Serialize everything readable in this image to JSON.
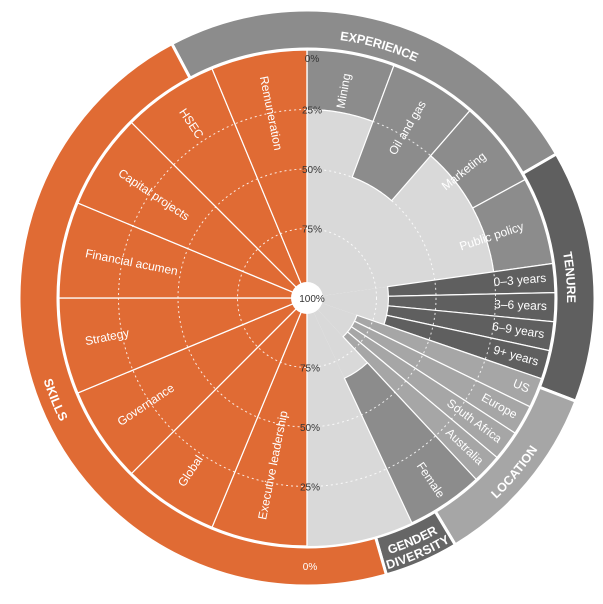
{
  "chart_data": {
    "type": "radial_bar",
    "scale_labels": {
      "top": [
        "0%",
        "25%",
        "50%",
        "75%"
      ],
      "center": "100%",
      "bottom": [
        "75%",
        "50%",
        "25%",
        "0%"
      ]
    },
    "groups": [
      {
        "name": "EXPERIENCE",
        "color": "#8c8c8c",
        "items": [
          {
            "label": "Mining",
            "value": 25
          },
          {
            "label": "Oil and gas",
            "value": 50
          },
          {
            "label": "Marketing",
            "value": 25
          },
          {
            "label": "Public policy",
            "value": 25
          }
        ]
      },
      {
        "name": "TENURE",
        "color": "#5f5f5f",
        "items": [
          {
            "label": "0–3 years",
            "value": 70
          },
          {
            "label": "3–6 years",
            "value": 70
          },
          {
            "label": "6–9 years",
            "value": 70
          },
          {
            "label": "9+ years",
            "value": 70
          }
        ]
      },
      {
        "name": "LOCATION",
        "color": "#a6a6a6",
        "items": [
          {
            "label": "US",
            "value": 82
          },
          {
            "label": "Europe",
            "value": 82
          },
          {
            "label": "South Africa",
            "value": 82
          },
          {
            "label": "Australia",
            "value": 82
          }
        ]
      },
      {
        "name": "GENDER DIVERSITY",
        "name_lines": [
          "GENDER",
          "DIVERSITY"
        ],
        "color": "#666666",
        "items": [
          {
            "label": "Female",
            "value": 67
          }
        ]
      },
      {
        "name": "SKILLS",
        "color": "#e06b34",
        "items": [
          {
            "label": "Executive leadership",
            "value": 100
          },
          {
            "label": "Global",
            "value": 100
          },
          {
            "label": "Governance",
            "value": 100
          },
          {
            "label": "Strategy",
            "value": 100
          },
          {
            "label": "Financial acumen",
            "value": 100
          },
          {
            "label": "Capital projects",
            "value": 100
          },
          {
            "label": "HSEC",
            "value": 100
          },
          {
            "label": "Remuneration",
            "value": 100
          }
        ]
      }
    ]
  }
}
